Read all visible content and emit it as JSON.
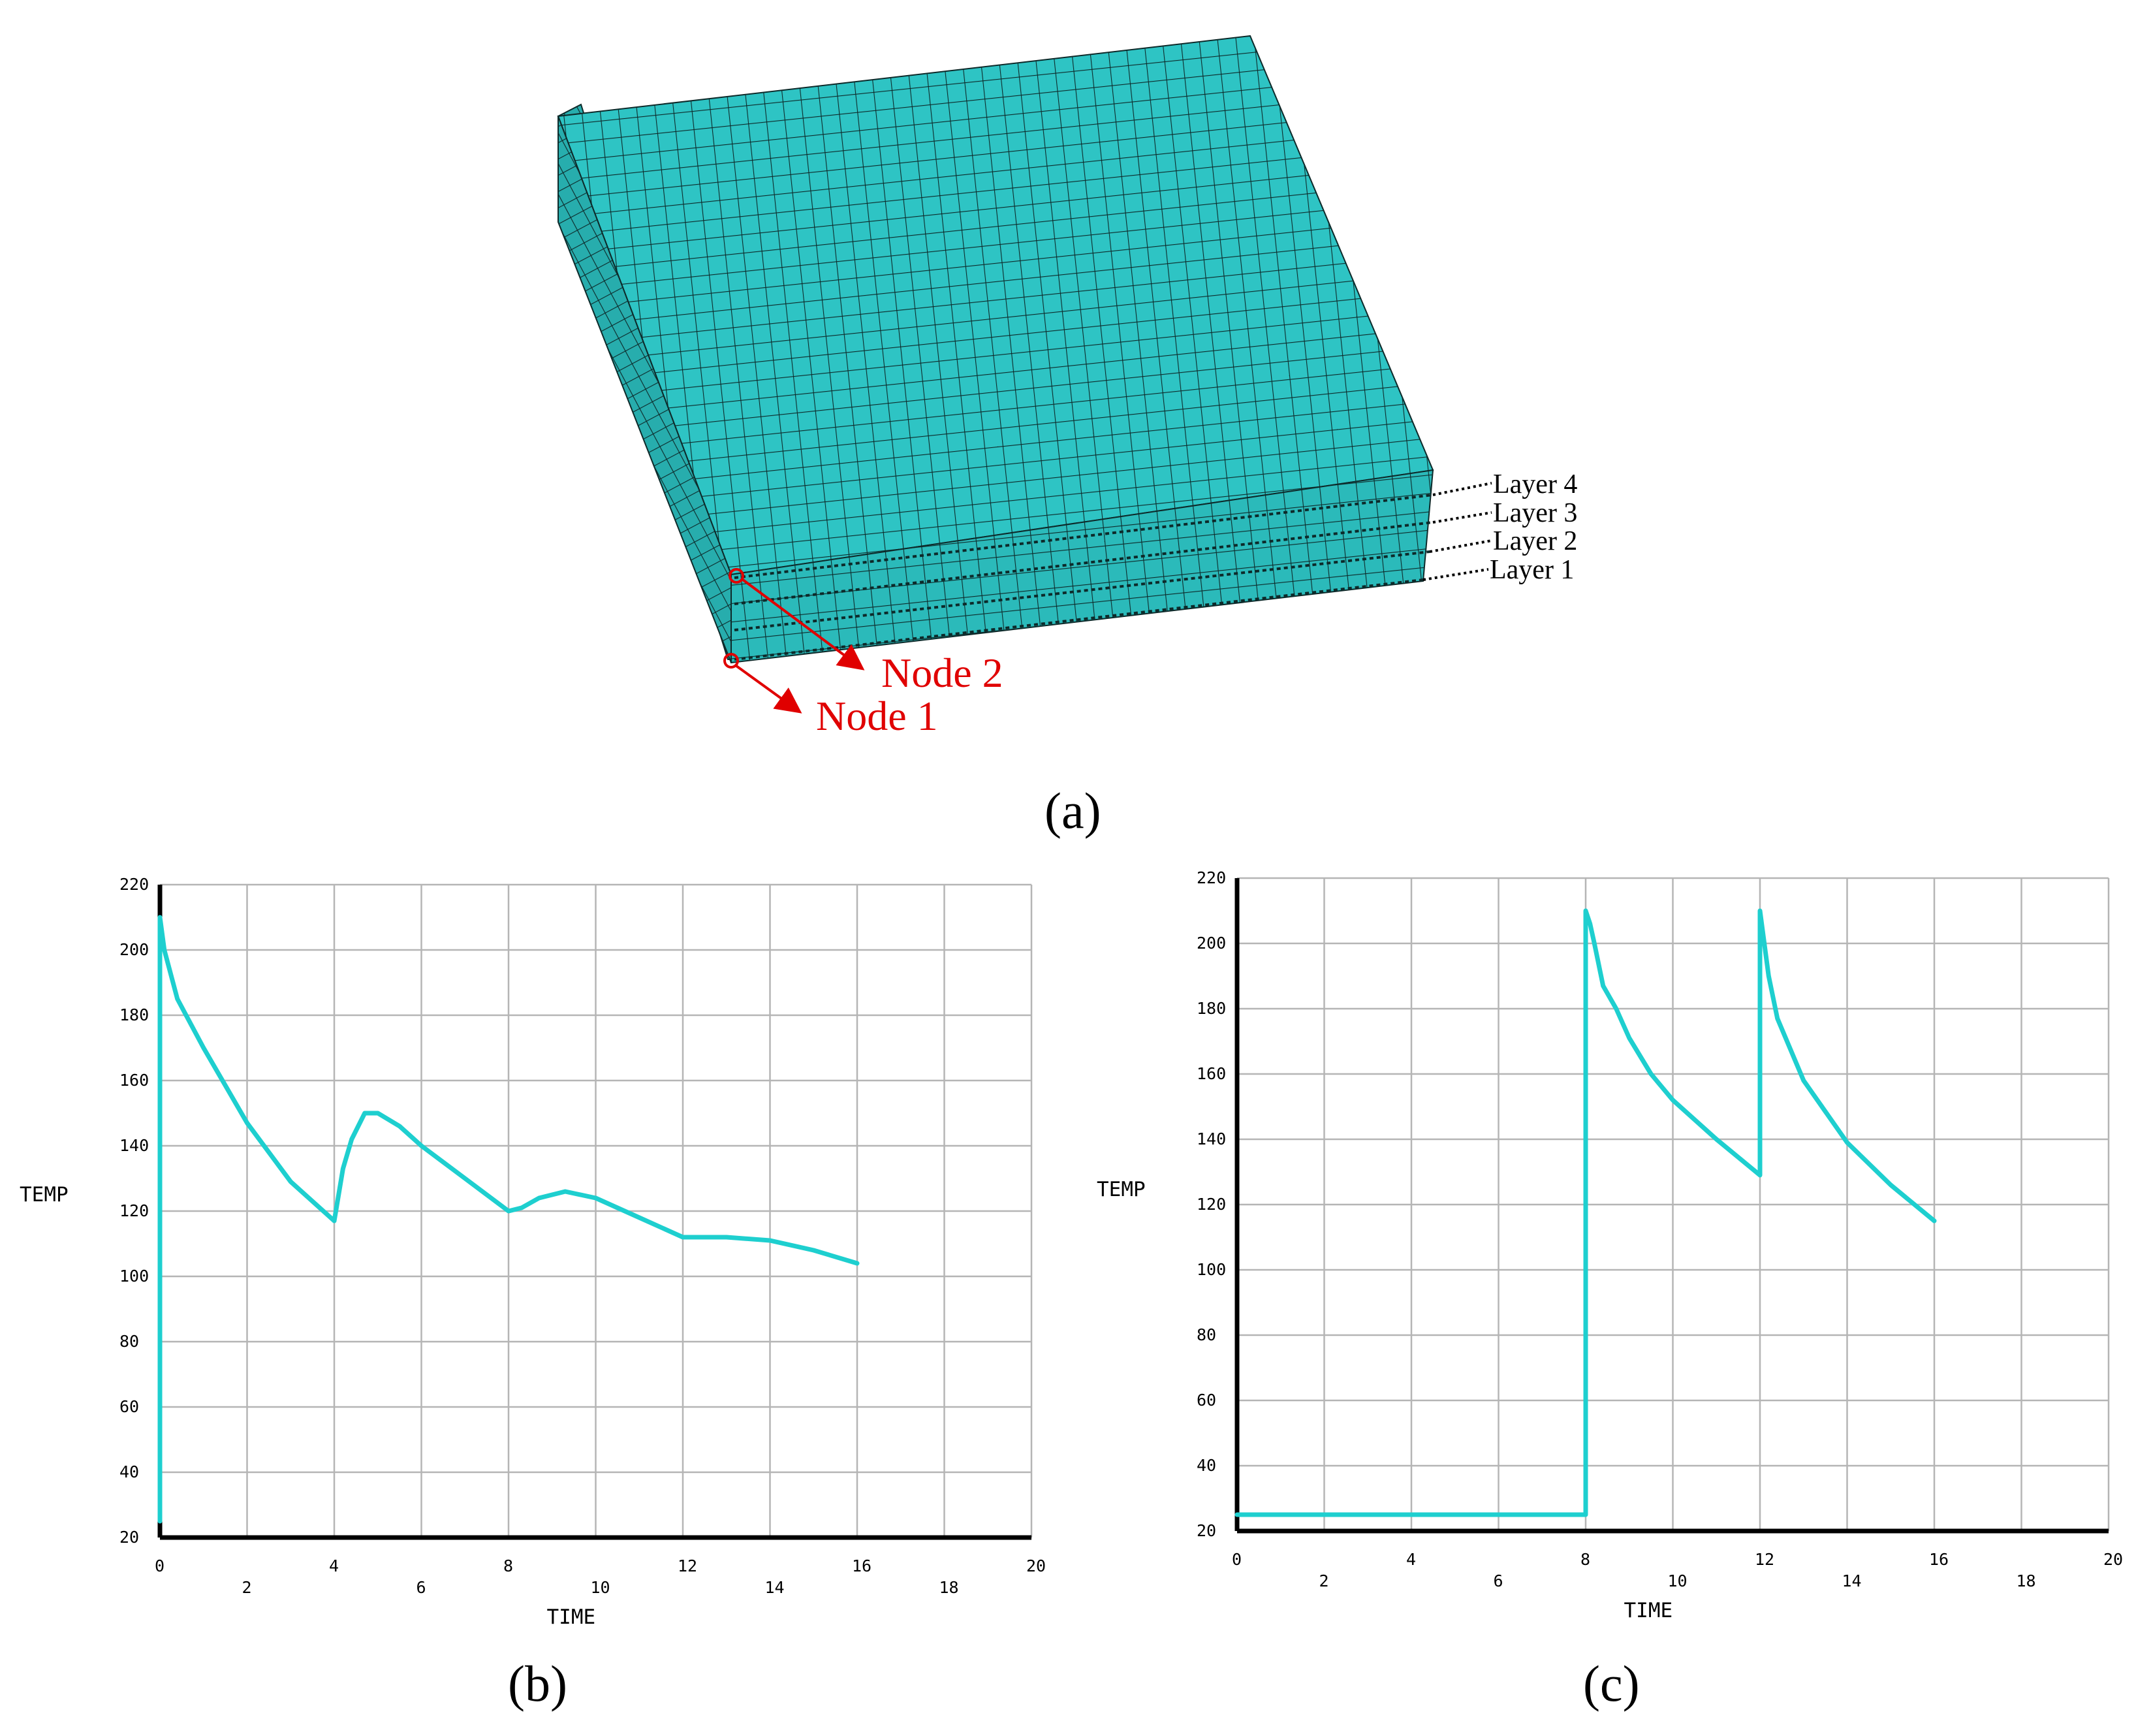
{
  "figure_a": {
    "caption": "(a)",
    "mesh_color": "#2ec4c4",
    "grid_line_color": "#0d2a2a",
    "layers": [
      "Layer 4",
      "Layer 3",
      "Layer 2",
      "Layer 1"
    ],
    "nodes": [
      {
        "label": "Node 2",
        "color": "#e00000"
      },
      {
        "label": "Node 1",
        "color": "#e00000"
      }
    ]
  },
  "chart_data": [
    {
      "type": "line",
      "caption": "(b)",
      "xlabel": "TIME",
      "ylabel": "TEMP",
      "xlim": [
        0,
        20
      ],
      "ylim": [
        20,
        220
      ],
      "xticks": [
        "0",
        "2",
        "4",
        "6",
        "8",
        "10",
        "12",
        "14",
        "16",
        "18",
        "20"
      ],
      "yticks": [
        "20",
        "40",
        "60",
        "80",
        "100",
        "120",
        "140",
        "160",
        "180",
        "200",
        "220"
      ],
      "grid": true,
      "line_color": "#1ecfcf",
      "series": [
        {
          "x": [
            0,
            0,
            0.1,
            0.4,
            1,
            2,
            3,
            4,
            4.2,
            4.4,
            4.7,
            5,
            5.5,
            6,
            7,
            8,
            8.3,
            8.7,
            9.3,
            10,
            11,
            12,
            12.5,
            13,
            14,
            15,
            16
          ],
          "y": [
            25,
            210,
            200,
            185,
            170,
            147,
            129,
            117,
            133,
            142,
            150,
            150,
            146,
            140,
            130,
            120,
            121,
            124,
            126,
            124,
            118,
            112,
            112,
            112,
            111,
            108,
            104
          ]
        }
      ]
    },
    {
      "type": "line",
      "caption": "(c)",
      "xlabel": "TIME",
      "ylabel": "TEMP",
      "xlim": [
        0,
        20
      ],
      "ylim": [
        20,
        220
      ],
      "xticks": [
        "0",
        "2",
        "4",
        "6",
        "8",
        "10",
        "12",
        "14",
        "16",
        "18",
        "20"
      ],
      "yticks": [
        "20",
        "40",
        "60",
        "80",
        "100",
        "120",
        "140",
        "160",
        "180",
        "200",
        "220"
      ],
      "grid": true,
      "line_color": "#1ecfcf",
      "series": [
        {
          "x": [
            0,
            8,
            8,
            8.1,
            8.2,
            8.4,
            8.7,
            9,
            9.5,
            10,
            11,
            12,
            12,
            12.05,
            12.2,
            12.4,
            13,
            14,
            15,
            16
          ],
          "y": [
            25,
            25,
            210,
            206,
            200,
            187,
            180,
            171,
            160,
            152,
            140,
            129,
            210,
            205,
            190,
            177,
            158,
            139,
            126,
            115
          ]
        }
      ]
    }
  ]
}
